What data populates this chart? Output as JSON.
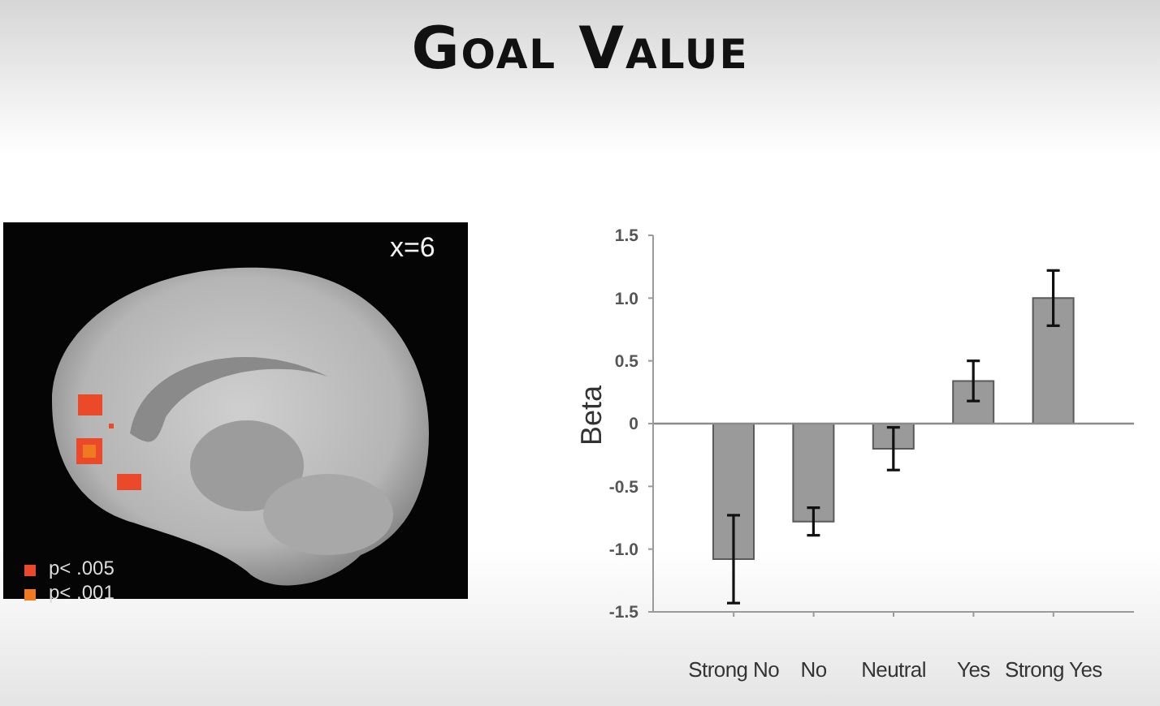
{
  "chart_data": {
    "type": "bar",
    "title": "Goal Value",
    "ylabel": "Beta",
    "categories": [
      "Strong No",
      "No",
      "Neutral",
      "Yes",
      "Strong Yes"
    ],
    "values": [
      -1.08,
      -0.78,
      -0.2,
      0.34,
      1.0
    ],
    "errors": [
      0.35,
      0.11,
      0.17,
      0.16,
      0.22
    ],
    "color": "#9a9a9a",
    "ylim": [
      -1.5,
      1.5
    ],
    "yticks": [
      -1.5,
      {
        "value": -1,
        "label": "-1.0"
      },
      -0.5,
      0,
      0.5,
      {
        "value": 1,
        "label": "1.0"
      },
      1.5
    ],
    "ref_lines": [
      {
        "axis": "y",
        "value": 0,
        "color": "#8c8c8c"
      }
    ],
    "annotations": [
      "x=6",
      "p< .005",
      "p< .001"
    ]
  }
}
